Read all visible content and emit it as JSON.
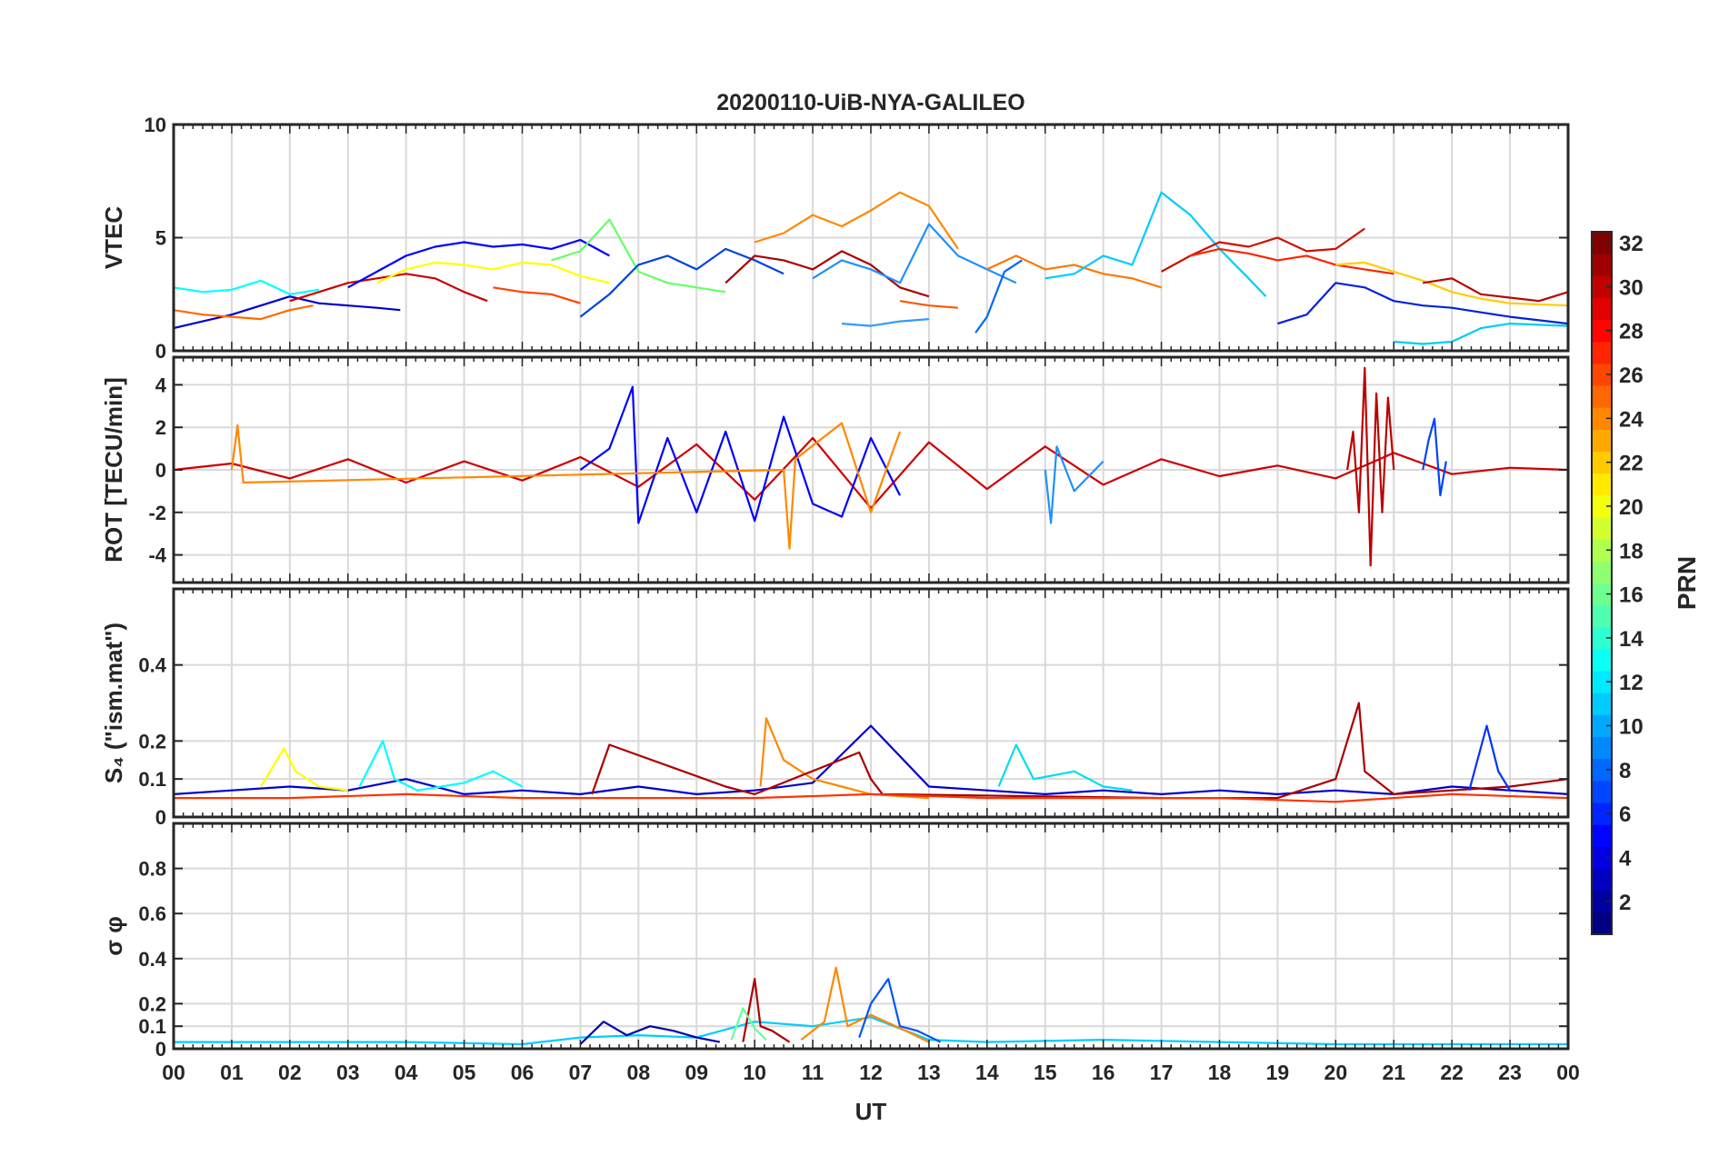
{
  "title": "20200110-UiB-NYA-GALILEO",
  "xlabel": "UT",
  "x_tick_labels": [
    "00",
    "01",
    "02",
    "03",
    "04",
    "05",
    "06",
    "07",
    "08",
    "09",
    "10",
    "11",
    "12",
    "13",
    "14",
    "15",
    "16",
    "17",
    "18",
    "19",
    "20",
    "21",
    "22",
    "23",
    "00"
  ],
  "chart_data": [
    {
      "type": "line",
      "panel": "VTEC",
      "ylabel": "VTEC",
      "xlim": [
        0,
        24
      ],
      "ylim": [
        0,
        10
      ],
      "yticks": [
        0,
        5,
        10
      ],
      "ytick_labels": [
        "0",
        "5",
        "10"
      ],
      "grid": true,
      "series": [
        {
          "color": "#00FFFF",
          "x": [
            0,
            0.5,
            1,
            1.5,
            2.0,
            2.5
          ],
          "y": [
            2.8,
            2.6,
            2.7,
            3.1,
            2.5,
            2.7
          ]
        },
        {
          "color": "#0000CC",
          "x": [
            0,
            0.5,
            1,
            1.5,
            2,
            2.5,
            3,
            3.5,
            3.9
          ],
          "y": [
            1.0,
            1.3,
            1.6,
            2.0,
            2.4,
            2.1,
            2.0,
            1.9,
            1.8
          ]
        },
        {
          "color": "#FF6A00",
          "x": [
            0,
            0.5,
            1,
            1.5,
            2.0,
            2.4
          ],
          "y": [
            1.8,
            1.6,
            1.5,
            1.4,
            1.8,
            2.0
          ]
        },
        {
          "color": "#CC0000",
          "x": [
            2.0,
            2.5,
            3,
            3.5,
            4,
            4.5,
            5,
            5.4
          ],
          "y": [
            2.2,
            2.6,
            3.0,
            3.2,
            3.4,
            3.2,
            2.6,
            2.2
          ]
        },
        {
          "color": "#0000FF",
          "x": [
            3,
            3.5,
            4,
            4.5,
            5,
            5.5,
            6,
            6.5,
            7,
            7.5
          ],
          "y": [
            2.8,
            3.5,
            4.2,
            4.6,
            4.8,
            4.6,
            4.7,
            4.5,
            4.9,
            4.2
          ]
        },
        {
          "color": "#FFFF00",
          "x": [
            3.5,
            4,
            4.5,
            5,
            5.5,
            6,
            6.5,
            7,
            7.5
          ],
          "y": [
            3.0,
            3.6,
            3.9,
            3.8,
            3.6,
            3.9,
            3.8,
            3.3,
            3.0
          ]
        },
        {
          "color": "#FF4400",
          "x": [
            5.5,
            6,
            6.5,
            7.0
          ],
          "y": [
            2.8,
            2.6,
            2.5,
            2.1
          ]
        },
        {
          "color": "#66FF66",
          "x": [
            6.5,
            7,
            7.5,
            8,
            8.5,
            9,
            9.5
          ],
          "y": [
            4.0,
            4.4,
            5.8,
            3.5,
            3.0,
            2.8,
            2.6
          ]
        },
        {
          "color": "#0044DD",
          "x": [
            7,
            7.5,
            8,
            8.5,
            9,
            9.5,
            10,
            10.5
          ],
          "y": [
            1.5,
            2.5,
            3.8,
            4.2,
            3.6,
            4.5,
            4.0,
            3.4
          ]
        },
        {
          "color": "#FF8800",
          "x": [
            10,
            10.5,
            11,
            11.5,
            12,
            12.5,
            13,
            13.5
          ],
          "y": [
            4.8,
            5.2,
            6.0,
            5.5,
            6.2,
            7.0,
            6.4,
            4.5
          ]
        },
        {
          "color": "#AA0000",
          "x": [
            9.5,
            10,
            10.5,
            11,
            11.5,
            12,
            12.5,
            13
          ],
          "y": [
            3.0,
            4.2,
            4.0,
            3.6,
            4.4,
            3.8,
            2.8,
            2.4
          ]
        },
        {
          "color": "#1E90FF",
          "x": [
            11,
            11.5,
            12,
            12.5,
            13,
            13.5,
            14,
            14.5
          ],
          "y": [
            3.2,
            4.0,
            3.6,
            3.0,
            5.6,
            4.2,
            3.6,
            3.0
          ]
        },
        {
          "color": "#FF5500",
          "x": [
            12.5,
            13,
            13.5
          ],
          "y": [
            2.2,
            2.0,
            1.9
          ]
        },
        {
          "color": "#3399FF",
          "x": [
            11.5,
            12,
            12.5,
            13
          ],
          "y": [
            1.2,
            1.1,
            1.3,
            1.4
          ]
        },
        {
          "color": "#0066FF",
          "x": [
            13.8,
            14,
            14.3,
            14.6
          ],
          "y": [
            0.8,
            1.5,
            3.5,
            4.0
          ]
        },
        {
          "color": "#FF7700",
          "x": [
            14,
            14.5,
            15,
            15.5,
            16,
            16.5,
            17
          ],
          "y": [
            3.6,
            4.2,
            3.6,
            3.8,
            3.4,
            3.2,
            2.8
          ]
        },
        {
          "color": "#00CCFF",
          "x": [
            15,
            15.5,
            16,
            16.5,
            17,
            17.5,
            18,
            18.5,
            18.8
          ],
          "y": [
            3.2,
            3.4,
            4.2,
            3.8,
            7.0,
            6.0,
            4.5,
            3.2,
            2.4
          ]
        },
        {
          "color": "#CC1100",
          "x": [
            17,
            17.5,
            18,
            18.5,
            19,
            19.5,
            20,
            20.5
          ],
          "y": [
            3.5,
            4.2,
            4.8,
            4.6,
            5.0,
            4.4,
            4.5,
            5.4
          ]
        },
        {
          "color": "#FF2200",
          "x": [
            17.5,
            18,
            18.5,
            19,
            19.5,
            20,
            20.5,
            21
          ],
          "y": [
            4.2,
            4.5,
            4.3,
            4.0,
            4.2,
            3.8,
            3.6,
            3.4
          ]
        },
        {
          "color": "#0022DD",
          "x": [
            19,
            19.5,
            20,
            20.5,
            21,
            21.5,
            22,
            22.5,
            23,
            24
          ],
          "y": [
            1.2,
            1.6,
            3.0,
            2.8,
            2.2,
            2.0,
            1.9,
            1.7,
            1.5,
            1.2
          ]
        },
        {
          "color": "#FFCC00",
          "x": [
            20,
            20.5,
            21,
            21.5,
            22,
            22.5,
            23,
            24
          ],
          "y": [
            3.8,
            3.9,
            3.5,
            3.1,
            2.6,
            2.3,
            2.1,
            2.0
          ]
        },
        {
          "color": "#00CCEE",
          "x": [
            21,
            21.5,
            22,
            22.5,
            23,
            24
          ],
          "y": [
            0.4,
            0.3,
            0.4,
            1.0,
            1.2,
            1.1
          ]
        },
        {
          "color": "#BB0000",
          "x": [
            21.5,
            22,
            22.5,
            23.5,
            24
          ],
          "y": [
            3.0,
            3.2,
            2.5,
            2.2,
            2.6
          ]
        }
      ]
    },
    {
      "type": "line",
      "panel": "ROT",
      "ylabel": "ROT [TECU/min]",
      "xlim": [
        0,
        24
      ],
      "ylim": [
        -5.3,
        5.3
      ],
      "yticks": [
        -4,
        -2,
        0,
        2,
        4
      ],
      "ytick_labels": [
        "-4",
        "-2",
        "0",
        "2",
        "4"
      ],
      "grid": true,
      "series": [
        {
          "color": "#CC0000",
          "x": [
            0,
            1,
            2,
            3,
            4,
            5,
            6,
            7,
            8,
            9,
            10,
            11,
            12,
            13,
            14,
            15,
            16,
            17,
            18,
            19,
            20,
            21,
            22,
            23,
            24
          ],
          "y": [
            0,
            0.3,
            -0.4,
            0.5,
            -0.6,
            0.4,
            -0.5,
            0.6,
            -0.8,
            1.2,
            -1.4,
            1.5,
            -1.8,
            1.3,
            -0.9,
            1.1,
            -0.7,
            0.5,
            -0.3,
            0.2,
            -0.4,
            0.8,
            -0.2,
            0.1,
            0
          ]
        },
        {
          "color": "#0000FF",
          "x": [
            7,
            7.5,
            7.9,
            8,
            8.5,
            9,
            9.5,
            10,
            10.5,
            11,
            11.5,
            12,
            12.5
          ],
          "y": [
            0,
            1.0,
            3.9,
            -2.5,
            1.5,
            -2.0,
            1.8,
            -2.4,
            2.5,
            -1.6,
            -2.2,
            1.5,
            -1.2
          ]
        },
        {
          "color": "#FF8800",
          "x": [
            1.0,
            1.1,
            1.2,
            10.5,
            10.6,
            10.7,
            11.5,
            12,
            12.5
          ],
          "y": [
            0,
            2.1,
            -0.6,
            0,
            -3.7,
            0.5,
            2.2,
            -2.0,
            1.8
          ]
        },
        {
          "color": "#1E90FF",
          "x": [
            15,
            15.1,
            15.2,
            15.5,
            16
          ],
          "y": [
            0,
            -2.5,
            1.1,
            -1.0,
            0.4
          ]
        },
        {
          "color": "#BB0000",
          "x": [
            20.2,
            20.3,
            20.4,
            20.5,
            20.6,
            20.7,
            20.8,
            20.9,
            21.0
          ],
          "y": [
            0,
            1.8,
            -2.0,
            4.8,
            -4.5,
            3.6,
            -2.0,
            3.4,
            0
          ]
        },
        {
          "color": "#0044FF",
          "x": [
            21.5,
            21.6,
            21.7,
            21.8,
            21.9
          ],
          "y": [
            0,
            1.4,
            2.4,
            -1.2,
            0.4
          ]
        }
      ]
    },
    {
      "type": "line",
      "panel": "S4",
      "ylabel": "S₄ (\"ism.mat\")",
      "xlim": [
        0,
        24
      ],
      "ylim": [
        0,
        0.6
      ],
      "yticks": [
        0,
        0.1,
        0.2,
        0.4
      ],
      "ytick_labels": [
        "0",
        "0.1",
        "0.2",
        "0.4"
      ],
      "grid": true,
      "series": [
        {
          "color": "#0000CC",
          "x": [
            0,
            1,
            2,
            3,
            4,
            5,
            6,
            7,
            8,
            9,
            10,
            11,
            12,
            13,
            14,
            15,
            16,
            17,
            18,
            19,
            20,
            21,
            22,
            23,
            24
          ],
          "y": [
            0.06,
            0.07,
            0.08,
            0.07,
            0.1,
            0.06,
            0.07,
            0.06,
            0.08,
            0.06,
            0.07,
            0.09,
            0.24,
            0.08,
            0.07,
            0.06,
            0.07,
            0.06,
            0.07,
            0.06,
            0.07,
            0.06,
            0.08,
            0.07,
            0.06
          ]
        },
        {
          "color": "#FFFF00",
          "x": [
            1.5,
            1.9,
            2.1,
            2.5,
            3
          ],
          "y": [
            0.08,
            0.18,
            0.12,
            0.08,
            0.07
          ]
        },
        {
          "color": "#00FFFF",
          "x": [
            3.2,
            3.6,
            3.8,
            4.2,
            5,
            5.5,
            6
          ],
          "y": [
            0.08,
            0.2,
            0.1,
            0.07,
            0.09,
            0.12,
            0.08
          ]
        },
        {
          "color": "#FF8800",
          "x": [
            10.1,
            10.2,
            10.5,
            11,
            11.5,
            12,
            13
          ],
          "y": [
            0.08,
            0.26,
            0.15,
            0.1,
            0.08,
            0.06,
            0.05
          ]
        },
        {
          "color": "#AA0000",
          "x": [
            7.2,
            7.5,
            9.5,
            10,
            11.8,
            12,
            12.2,
            17,
            19,
            20,
            20.4,
            20.5,
            21,
            22,
            23,
            24
          ],
          "y": [
            0.06,
            0.19,
            0.08,
            0.06,
            0.17,
            0.1,
            0.06,
            0.05,
            0.05,
            0.1,
            0.3,
            0.12,
            0.06,
            0.07,
            0.08,
            0.1
          ]
        },
        {
          "color": "#00DDEE",
          "x": [
            14.2,
            14.5,
            14.8,
            15.5,
            16,
            16.5
          ],
          "y": [
            0.08,
            0.19,
            0.1,
            0.12,
            0.08,
            0.07
          ]
        },
        {
          "color": "#0033FF",
          "x": [
            22.3,
            22.6,
            22.8,
            23.0
          ],
          "y": [
            0.07,
            0.24,
            0.12,
            0.07
          ]
        },
        {
          "color": "#FF3300",
          "x": [
            0,
            2,
            4,
            6,
            8,
            10,
            12,
            14,
            16,
            18,
            20,
            22,
            24
          ],
          "y": [
            0.05,
            0.05,
            0.06,
            0.05,
            0.05,
            0.05,
            0.06,
            0.05,
            0.05,
            0.05,
            0.04,
            0.06,
            0.05
          ]
        }
      ]
    },
    {
      "type": "line",
      "panel": "sigma_phi",
      "ylabel": "σ φ",
      "xlim": [
        0,
        24
      ],
      "ylim": [
        0,
        1.0
      ],
      "yticks": [
        0,
        0.1,
        0.2,
        0.4,
        0.6,
        0.8
      ],
      "ytick_labels": [
        "0",
        "0.1",
        "0.2",
        "0.4",
        "0.6",
        "0.8"
      ],
      "grid": true,
      "series": [
        {
          "color": "#00CCFF",
          "x": [
            0,
            2,
            4,
            6,
            7,
            8,
            9,
            10,
            11,
            12,
            13,
            14,
            16,
            18,
            20,
            22,
            24
          ],
          "y": [
            0.03,
            0.03,
            0.03,
            0.02,
            0.05,
            0.06,
            0.05,
            0.12,
            0.1,
            0.14,
            0.04,
            0.03,
            0.04,
            0.03,
            0.02,
            0.02,
            0.02
          ]
        },
        {
          "color": "#0000AA",
          "x": [
            7.0,
            7.4,
            7.8,
            8.2,
            8.6,
            9.0,
            9.4
          ],
          "y": [
            0.02,
            0.12,
            0.06,
            0.1,
            0.08,
            0.05,
            0.03
          ]
        },
        {
          "color": "#AA0000",
          "x": [
            9.8,
            10.0,
            10.1,
            10.3,
            10.6
          ],
          "y": [
            0.03,
            0.31,
            0.1,
            0.08,
            0.03
          ]
        },
        {
          "color": "#FF8800",
          "x": [
            10.8,
            11.2,
            11.4,
            11.6,
            12,
            12.6,
            13
          ],
          "y": [
            0.04,
            0.12,
            0.36,
            0.1,
            0.15,
            0.08,
            0.03
          ]
        },
        {
          "color": "#0055FF",
          "x": [
            11.8,
            12.0,
            12.3,
            12.5,
            12.8,
            13.2
          ],
          "y": [
            0.05,
            0.2,
            0.31,
            0.1,
            0.08,
            0.03
          ]
        },
        {
          "color": "#66FF99",
          "x": [
            9.6,
            9.8,
            10.0,
            10.2
          ],
          "y": [
            0.04,
            0.18,
            0.09,
            0.04
          ]
        }
      ]
    }
  ],
  "colorbar": {
    "label": "PRN",
    "range": [
      1,
      32
    ],
    "ticks": [
      2,
      4,
      6,
      8,
      10,
      12,
      14,
      16,
      18,
      20,
      22,
      24,
      26,
      28,
      30,
      32
    ],
    "tick_labels": [
      "2",
      "4",
      "6",
      "8",
      "10",
      "12",
      "14",
      "16",
      "18",
      "20",
      "22",
      "24",
      "26",
      "28",
      "30",
      "32"
    ],
    "colormap": "jet"
  }
}
